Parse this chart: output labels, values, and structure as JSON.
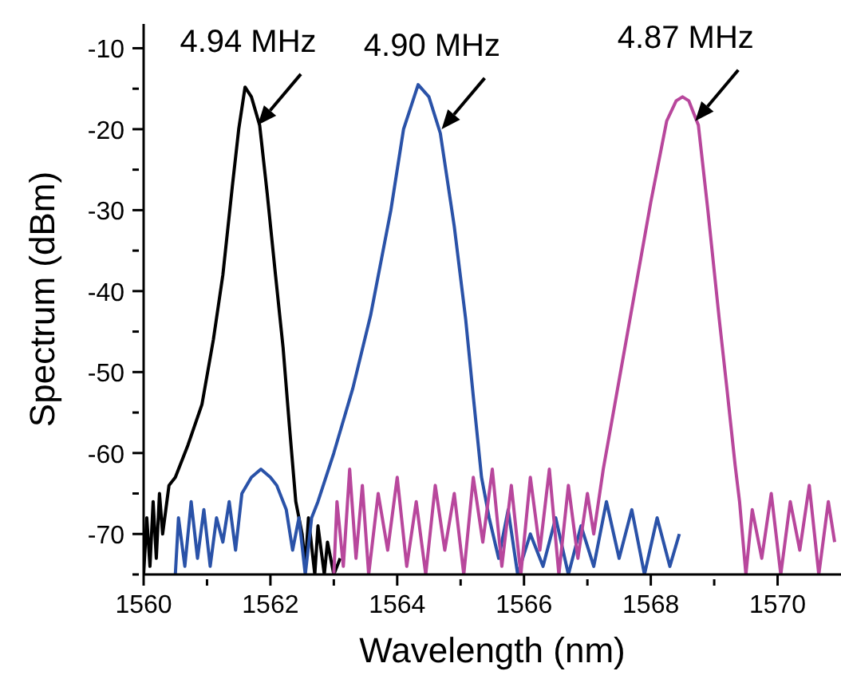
{
  "chart_data": {
    "type": "line",
    "xlabel": "Wavelength (nm)",
    "ylabel": "Spectrum (dBm)",
    "xlim": [
      1560,
      1571
    ],
    "ylim": [
      -75,
      -7
    ],
    "xticks": [
      1560,
      {
        "value": 1561,
        "label": null
      },
      1562,
      {
        "value": 1563,
        "label": null
      },
      1564,
      {
        "value": 1565,
        "label": null
      },
      1566,
      {
        "value": 1567,
        "label": null
      },
      1568,
      {
        "value": 1569,
        "label": null
      },
      1570
    ],
    "yticks": [
      {
        "value": -75,
        "label": null
      },
      -70,
      {
        "value": -65,
        "label": null
      },
      -60,
      {
        "value": -55,
        "label": null
      },
      -50,
      {
        "value": -45,
        "label": null
      },
      -40,
      {
        "value": -35,
        "label": null
      },
      -30,
      {
        "value": -25,
        "label": null
      },
      -20,
      {
        "value": -15,
        "label": null
      },
      -10
    ],
    "grid": false,
    "legend": false,
    "marker": "none",
    "line_style": "solid",
    "annotations": [
      {
        "text": "4.94 MHz",
        "x": 1561.8,
        "y": -19.5
      },
      {
        "text": "4.90 MHz",
        "x": 1564.7,
        "y": -20
      },
      {
        "text": "4.87 MHz",
        "x": 1568.7,
        "y": -19
      }
    ],
    "series": [
      {
        "color": "#000000",
        "x": [
          1560.0,
          1560.05,
          1560.1,
          1560.15,
          1560.2,
          1560.25,
          1560.3,
          1560.4,
          1560.5,
          1560.7,
          1560.92,
          1561.1,
          1561.25,
          1561.4,
          1561.5,
          1561.6,
          1561.7,
          1561.83,
          1561.95,
          1562.08,
          1562.2,
          1562.3,
          1562.4,
          1562.5,
          1562.55,
          1562.6,
          1562.7,
          1562.75,
          1562.85,
          1562.9,
          1563.0,
          1563.1
        ],
        "values": [
          -75,
          -68,
          -74,
          -66,
          -73,
          -65,
          -70,
          -64,
          -63,
          -59,
          -54,
          -46,
          -38,
          -27,
          -20,
          -14.8,
          -16,
          -19.5,
          -28,
          -38,
          -47,
          -56.7,
          -66,
          -70,
          -74,
          -68,
          -75,
          -69,
          -75,
          -71,
          -75,
          -73
        ]
      },
      {
        "color": "#2a52a8",
        "x": [
          1560.5,
          1560.55,
          1560.65,
          1560.75,
          1560.85,
          1560.95,
          1561.05,
          1561.15,
          1561.25,
          1561.35,
          1561.45,
          1561.55,
          1561.7,
          1561.85,
          1562.0,
          1562.1,
          1562.25,
          1562.35,
          1562.45,
          1562.55,
          1562.65,
          1562.75,
          1563.0,
          1563.3,
          1563.58,
          1563.9,
          1564.1,
          1564.33,
          1564.5,
          1564.68,
          1564.9,
          1565.08,
          1565.2,
          1565.33,
          1565.45,
          1565.6,
          1565.75,
          1565.9,
          1566.1,
          1566.3,
          1566.5,
          1566.7,
          1566.9,
          1567.1,
          1567.3,
          1567.5,
          1567.7,
          1567.9,
          1568.1,
          1568.3,
          1568.45
        ],
        "values": [
          -75,
          -68,
          -74,
          -66,
          -73,
          -67,
          -74,
          -68,
          -71,
          -66,
          -72,
          -65,
          -63,
          -62,
          -63,
          -64,
          -67,
          -72,
          -68,
          -75,
          -68,
          -66,
          -60,
          -52,
          -43,
          -30,
          -20,
          -14.5,
          -16,
          -20.5,
          -32,
          -43.5,
          -53,
          -63,
          -68,
          -73,
          -67,
          -75,
          -70,
          -74,
          -68,
          -75,
          -69,
          -74,
          -66,
          -73,
          -67,
          -75,
          -68,
          -74,
          -70
        ]
      },
      {
        "color": "#b8479c",
        "x": [
          1563.0,
          1563.05,
          1563.15,
          1563.25,
          1563.35,
          1563.45,
          1563.55,
          1563.7,
          1563.85,
          1564.0,
          1564.15,
          1564.3,
          1564.45,
          1564.6,
          1564.75,
          1564.9,
          1565.05,
          1565.2,
          1565.35,
          1565.5,
          1565.65,
          1565.8,
          1565.95,
          1566.1,
          1566.25,
          1566.4,
          1566.55,
          1566.7,
          1566.85,
          1567.0,
          1567.1,
          1567.25,
          1567.5,
          1567.75,
          1568.0,
          1568.25,
          1568.4,
          1568.5,
          1568.6,
          1568.75,
          1568.9,
          1569.08,
          1569.2,
          1569.33,
          1569.4,
          1569.5,
          1569.6,
          1569.75,
          1569.9,
          1570.05,
          1570.2,
          1570.35,
          1570.5,
          1570.65,
          1570.8,
          1570.9
        ],
        "values": [
          -75,
          -66,
          -74,
          -62,
          -73,
          -64,
          -75,
          -65,
          -72,
          -63,
          -74,
          -66,
          -75,
          -64,
          -72,
          -65,
          -75,
          -63,
          -71,
          -62,
          -74,
          -64,
          -75,
          -63,
          -72,
          -62,
          -75,
          -64,
          -73,
          -65,
          -70,
          -62,
          -51,
          -40,
          -29,
          -19,
          -16.5,
          -16,
          -16.5,
          -19.5,
          -30,
          -43.5,
          -52,
          -61.5,
          -66,
          -75,
          -67,
          -73,
          -65,
          -75,
          -66,
          -72,
          -64,
          -75,
          -66,
          -71
        ]
      }
    ]
  }
}
